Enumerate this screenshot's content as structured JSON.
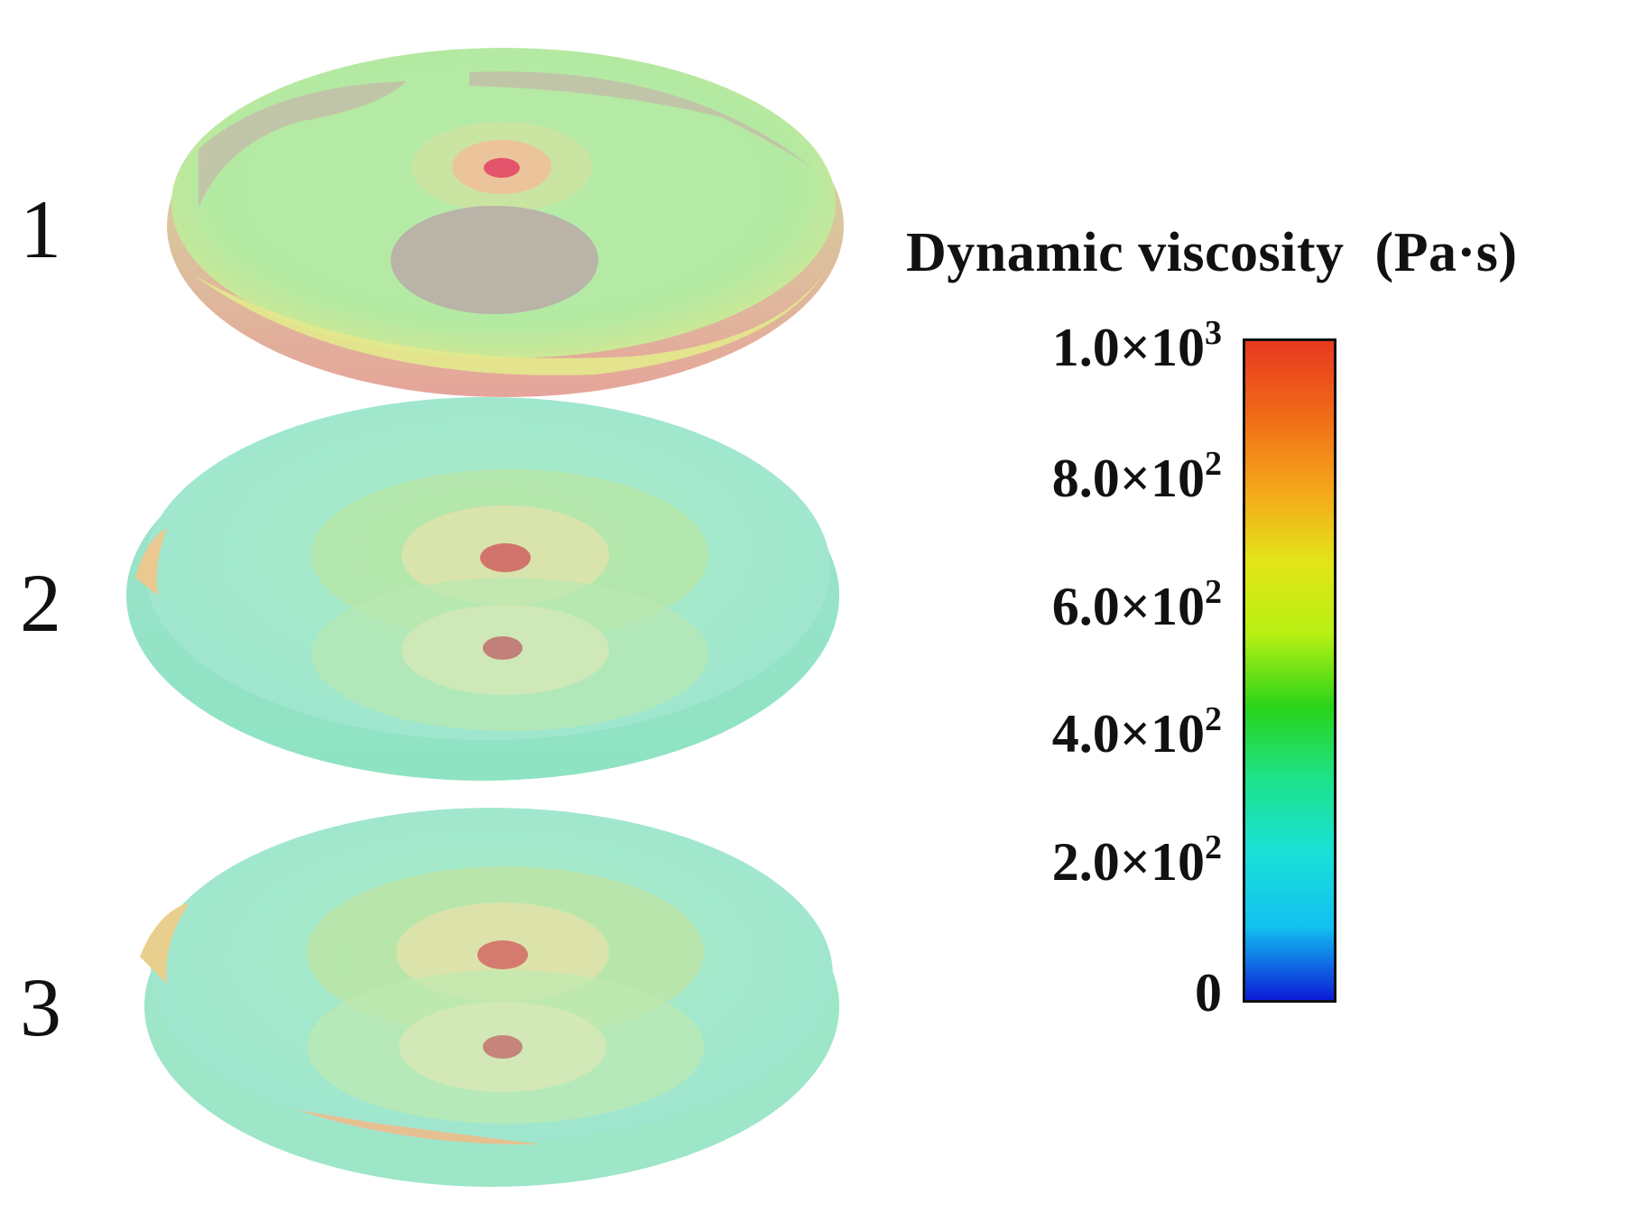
{
  "panels": [
    {
      "label": "1"
    },
    {
      "label": "2"
    },
    {
      "label": "3"
    }
  ],
  "legend": {
    "title": "Dynamic viscosity",
    "unit": "(Pa·s)",
    "ticks": [
      {
        "base": "1.0×10",
        "exp": "3",
        "value": 1000
      },
      {
        "base": "8.0×10",
        "exp": "2",
        "value": 800
      },
      {
        "base": "6.0×10",
        "exp": "2",
        "value": 600
      },
      {
        "base": "4.0×10",
        "exp": "2",
        "value": 400
      },
      {
        "base": "2.0×10",
        "exp": "2",
        "value": 200
      },
      {
        "base": "0",
        "exp": "",
        "value": 0
      }
    ],
    "colormap": [
      "#0c1bd8",
      "#12c0f0",
      "#19e0d8",
      "#1de38c",
      "#29d418",
      "#b8f014",
      "#e4e418",
      "#f5a41a",
      "#f06a18",
      "#e8381f"
    ]
  }
}
